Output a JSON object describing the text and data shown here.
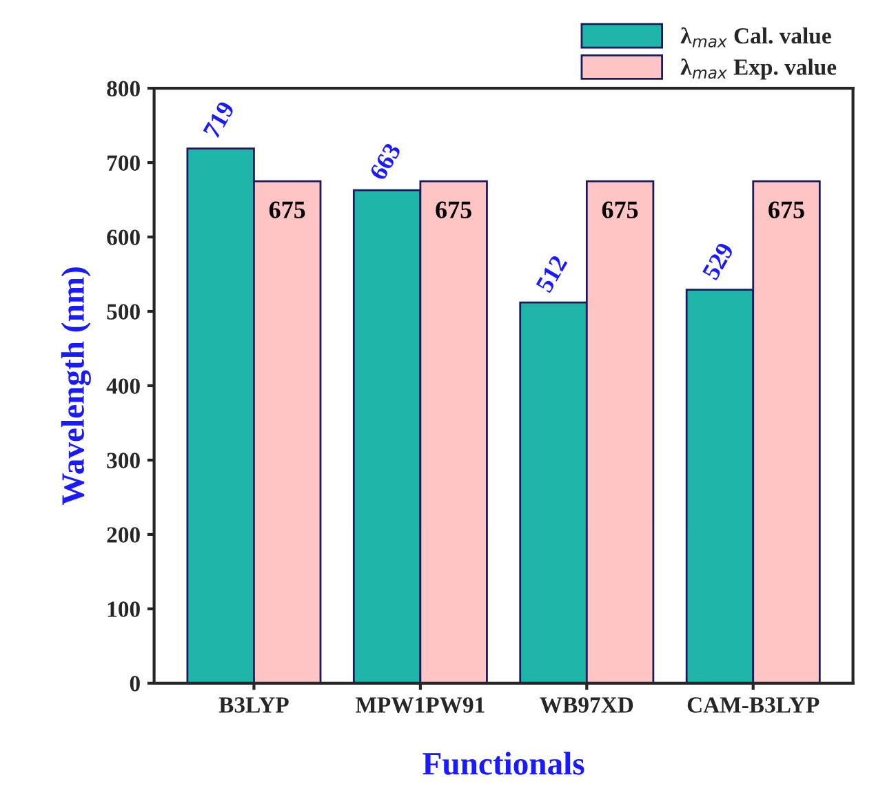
{
  "chart_data": {
    "type": "bar",
    "xlabel": "Functionals",
    "ylabel": "Wavelength (nm)",
    "categories": [
      "B3LYP",
      "MPW1PW91",
      "WB97XD",
      "CAM-B3LYP"
    ],
    "series": [
      {
        "name": "λ$_{max}$ Cal. value",
        "color": "#1fb5a8",
        "values": [
          719,
          663,
          512,
          529
        ]
      },
      {
        "name": "λ$_{max}$ Exp. value",
        "color": "#ffc4c4",
        "values": [
          675,
          675,
          675,
          675
        ]
      }
    ],
    "ylim": [
      0,
      800
    ],
    "yticks": [
      0,
      100,
      200,
      300,
      400,
      500,
      600,
      700,
      800
    ],
    "data_labels": true,
    "legend": "top right",
    "grid": false
  }
}
